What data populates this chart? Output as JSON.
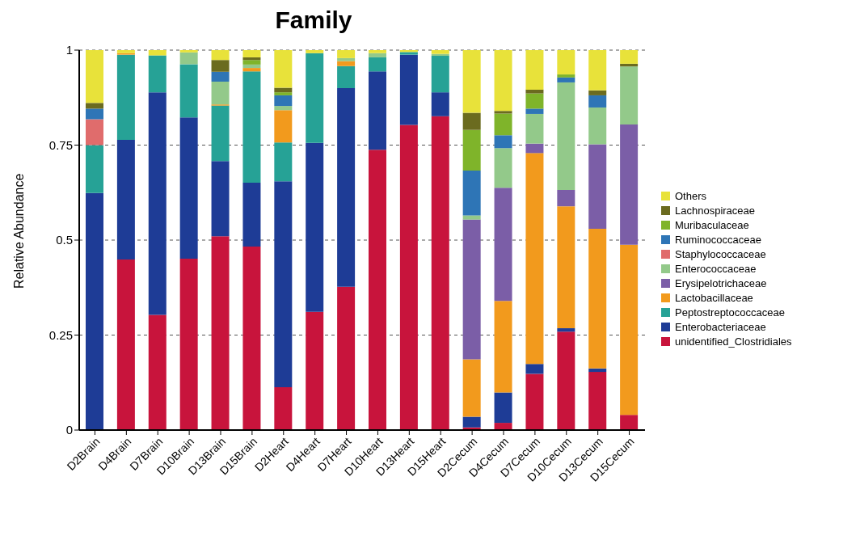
{
  "chart_data": {
    "type": "bar",
    "stacked": true,
    "title": "Family",
    "ylabel": "Relative Abundance",
    "categories": [
      "D2Brain",
      "D4Brain",
      "D7Brain",
      "D10Brain",
      "D13Brain",
      "D15Brain",
      "D2Heart",
      "D4Heart",
      "D7Heart",
      "D10Heart",
      "D13Heart",
      "D15Heart",
      "D2Cecum",
      "D4Cecum",
      "D7Cecum",
      "D10Cecum",
      "D13Cecum",
      "D15Cecum"
    ],
    "ylim": [
      0,
      1
    ],
    "yticks": [
      0,
      0.25,
      0.5,
      0.75,
      1
    ],
    "grid": "y",
    "legend": "right",
    "series": [
      {
        "name": "unidentified_Clostridiales",
        "color": "#c8143c",
        "values": [
          0,
          0.449,
          0.303,
          0.451,
          0.51,
          0.483,
          0.113,
          0.311,
          0.377,
          0.738,
          0.803,
          0.826,
          0.007,
          0.019,
          0.148,
          0.259,
          0.153,
          0.04
        ]
      },
      {
        "name": "Enterobacteriaceae",
        "color": "#1e3c96",
        "values": [
          0.624,
          0.315,
          0.586,
          0.372,
          0.198,
          0.168,
          0.542,
          0.445,
          0.523,
          0.206,
          0.185,
          0.063,
          0.028,
          0.08,
          0.026,
          0.009,
          0.009,
          0
        ]
      },
      {
        "name": "Peptostreptococcaceae",
        "color": "#26a296",
        "values": [
          0.126,
          0.224,
          0.097,
          0.14,
          0.146,
          0.293,
          0.102,
          0.236,
          0.058,
          0.037,
          0.007,
          0.096,
          0,
          0,
          0,
          0,
          0,
          0
        ]
      },
      {
        "name": "Lactobacillaceae",
        "color": "#f29a1d",
        "values": [
          0,
          0.004,
          0,
          0,
          0.003,
          0.009,
          0.085,
          0,
          0.013,
          0,
          0,
          0,
          0.151,
          0.241,
          0.555,
          0.321,
          0.368,
          0.448
        ]
      },
      {
        "name": "Erysipelotrichaceae",
        "color": "#7b5ea7",
        "values": [
          0,
          0,
          0,
          0,
          0,
          0,
          0,
          0,
          0,
          0,
          0,
          0,
          0.368,
          0.298,
          0.025,
          0.043,
          0.222,
          0.316
        ]
      },
      {
        "name": "Enterococcaceae",
        "color": "#93c98a",
        "values": [
          0,
          0,
          0,
          0.031,
          0.06,
          0.009,
          0.011,
          0,
          0.008,
          0.011,
          0,
          0.005,
          0.011,
          0.104,
          0.078,
          0.283,
          0.097,
          0.153
        ]
      },
      {
        "name": "Staphylococcaceae",
        "color": "#e06c6c",
        "values": [
          0.068,
          0,
          0,
          0,
          0,
          0,
          0,
          0,
          0,
          0,
          0,
          0,
          0,
          0,
          0,
          0,
          0,
          0
        ]
      },
      {
        "name": "Ruminococcaceae",
        "color": "#2e75b6",
        "values": [
          0.028,
          0,
          0,
          0,
          0.026,
          0,
          0.028,
          0,
          0,
          0,
          0,
          0,
          0.118,
          0.034,
          0.014,
          0.013,
          0.032,
          0
        ]
      },
      {
        "name": "Muribaculaceae",
        "color": "#7fb42a",
        "values": [
          0,
          0,
          0,
          0,
          0,
          0.012,
          0.008,
          0,
          0,
          0,
          0,
          0,
          0.107,
          0.057,
          0.04,
          0.008,
          0,
          0
        ]
      },
      {
        "name": "Lachnospiraceae",
        "color": "#6b6b1f",
        "values": [
          0.015,
          0,
          0,
          0,
          0.031,
          0.007,
          0.012,
          0,
          0,
          0,
          0,
          0,
          0.045,
          0.007,
          0.01,
          0,
          0.013,
          0.007
        ]
      },
      {
        "name": "Others",
        "color": "#e8e23a",
        "values": [
          0.139,
          0.008,
          0.014,
          0.006,
          0.026,
          0.019,
          0.099,
          0.008,
          0.021,
          0.008,
          0.005,
          0.01,
          0.165,
          0.16,
          0.104,
          0.064,
          0.106,
          0.036
        ]
      }
    ]
  }
}
